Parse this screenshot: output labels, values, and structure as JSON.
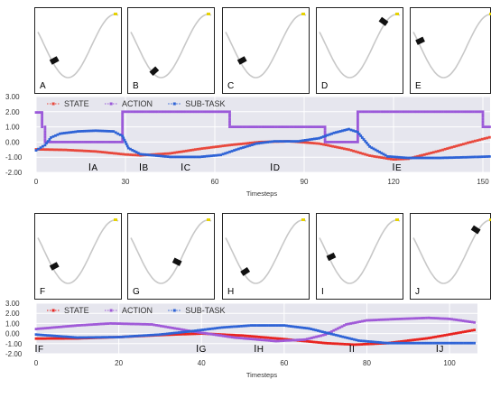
{
  "figure": {
    "top": {
      "frames": [
        "A",
        "B",
        "C",
        "D",
        "E"
      ],
      "frame_car_positions": [
        0.18,
        0.27,
        0.18,
        0.82,
        0.06
      ]
    },
    "bottom": {
      "frames": [
        "F",
        "G",
        "H",
        "I",
        "J"
      ],
      "frame_car_positions": [
        0.18,
        0.6,
        0.22,
        0.12,
        0.8
      ]
    }
  },
  "chart_data": [
    {
      "type": "line",
      "xlabel": "Timesteps",
      "ylabel": "",
      "xlim": [
        0,
        150
      ],
      "ylim": [
        -2.0,
        3.0
      ],
      "xticks": [
        0,
        30,
        60,
        90,
        120,
        150
      ],
      "xtick_labels": [
        "0",
        "30",
        "60",
        "90",
        "120",
        "150"
      ],
      "yticks": [
        -2.0,
        -1.0,
        0.0,
        1.0,
        2.0,
        3.0
      ],
      "ytick_labels": [
        "-2.00",
        "-1.00",
        "0.00",
        "1.00",
        "2.00",
        "3.00"
      ],
      "legend": [
        "STATE",
        "ACTION",
        "SUB-TASK"
      ],
      "legend_position": "top",
      "grid": true,
      "markers": [
        {
          "label": "A",
          "x": 18
        },
        {
          "label": "B",
          "x": 35
        },
        {
          "label": "C",
          "x": 49
        },
        {
          "label": "D",
          "x": 79
        },
        {
          "label": "E",
          "x": 120
        }
      ],
      "series": [
        {
          "name": "STATE",
          "color": "#e8483c",
          "x_max": 153,
          "points": [
            [
              0,
              -0.48
            ],
            [
              10,
              -0.52
            ],
            [
              20,
              -0.62
            ],
            [
              30,
              -0.82
            ],
            [
              35,
              -0.88
            ],
            [
              45,
              -0.75
            ],
            [
              55,
              -0.45
            ],
            [
              65,
              -0.2
            ],
            [
              75,
              0.0
            ],
            [
              85,
              0.05
            ],
            [
              95,
              -0.1
            ],
            [
              105,
              -0.5
            ],
            [
              112,
              -0.9
            ],
            [
              120,
              -1.15
            ],
            [
              125,
              -1.1
            ],
            [
              135,
              -0.6
            ],
            [
              145,
              -0.05
            ],
            [
              153,
              0.35
            ]
          ]
        },
        {
          "name": "ACTION",
          "color": "#9b59d9",
          "x_max": 153,
          "points": [
            [
              0,
              1.95
            ],
            [
              2,
              1.95
            ],
            [
              2,
              1.0
            ],
            [
              3,
              1.0
            ],
            [
              3,
              0.0
            ],
            [
              29,
              0.0
            ],
            [
              29,
              2.0
            ],
            [
              65,
              2.0
            ],
            [
              65,
              1.0
            ],
            [
              97,
              1.0
            ],
            [
              97,
              0.0
            ],
            [
              108,
              0.0
            ],
            [
              108,
              2.0
            ],
            [
              150,
              2.0
            ],
            [
              150,
              1.0
            ],
            [
              153,
              1.0
            ]
          ]
        },
        {
          "name": "SUB-TASK",
          "color": "#2e63d6",
          "x_max": 153,
          "points": [
            [
              0,
              -0.55
            ],
            [
              3,
              -0.2
            ],
            [
              5,
              0.3
            ],
            [
              8,
              0.55
            ],
            [
              14,
              0.7
            ],
            [
              20,
              0.75
            ],
            [
              26,
              0.7
            ],
            [
              29,
              0.4
            ],
            [
              31,
              -0.4
            ],
            [
              35,
              -0.8
            ],
            [
              45,
              -0.98
            ],
            [
              55,
              -0.98
            ],
            [
              62,
              -0.85
            ],
            [
              68,
              -0.45
            ],
            [
              74,
              -0.1
            ],
            [
              80,
              0.05
            ],
            [
              88,
              0.05
            ],
            [
              95,
              0.25
            ],
            [
              100,
              0.6
            ],
            [
              105,
              0.85
            ],
            [
              108,
              0.65
            ],
            [
              112,
              -0.3
            ],
            [
              118,
              -0.95
            ],
            [
              125,
              -1.05
            ],
            [
              135,
              -1.05
            ],
            [
              145,
              -1.0
            ],
            [
              153,
              -0.95
            ]
          ]
        }
      ]
    },
    {
      "type": "line",
      "xlabel": "Timesteps",
      "ylabel": "",
      "xlim": [
        0,
        105
      ],
      "ylim": [
        -2.0,
        3.0
      ],
      "xticks": [
        0,
        20,
        40,
        60,
        80,
        100
      ],
      "xtick_labels": [
        "0",
        "20",
        "40",
        "60",
        "80",
        "100"
      ],
      "yticks": [
        -2.0,
        -1.0,
        0.0,
        1.0,
        2.0,
        3.0
      ],
      "ytick_labels": [
        "-2.00",
        "-1.00",
        "0.00",
        "1.00",
        "2.00",
        "3.00"
      ],
      "legend": [
        "STATE",
        "ACTION",
        "SUB-TASK"
      ],
      "legend_position": "top",
      "grid": true,
      "markers": [
        {
          "label": "F",
          "x": 0
        },
        {
          "label": "G",
          "x": 39
        },
        {
          "label": "H",
          "x": 53
        },
        {
          "label": "I",
          "x": 76
        },
        {
          "label": "J",
          "x": 97
        }
      ],
      "series": [
        {
          "name": "STATE",
          "color": "#e8231f",
          "x_max": 106,
          "points": [
            [
              0,
              -0.5
            ],
            [
              10,
              -0.48
            ],
            [
              20,
              -0.35
            ],
            [
              30,
              -0.15
            ],
            [
              40,
              0.0
            ],
            [
              50,
              -0.2
            ],
            [
              60,
              -0.55
            ],
            [
              70,
              -0.95
            ],
            [
              77,
              -1.1
            ],
            [
              85,
              -0.95
            ],
            [
              95,
              -0.45
            ],
            [
              106,
              0.35
            ]
          ]
        },
        {
          "name": "ACTION",
          "color": "#a05ad8",
          "x_max": 106,
          "points": [
            [
              0,
              0.45
            ],
            [
              10,
              0.8
            ],
            [
              18,
              1.0
            ],
            [
              28,
              0.9
            ],
            [
              38,
              0.2
            ],
            [
              48,
              -0.4
            ],
            [
              58,
              -0.75
            ],
            [
              65,
              -0.6
            ],
            [
              70,
              -0.1
            ],
            [
              75,
              0.9
            ],
            [
              80,
              1.3
            ],
            [
              88,
              1.45
            ],
            [
              95,
              1.55
            ],
            [
              100,
              1.45
            ],
            [
              106,
              1.1
            ]
          ]
        },
        {
          "name": "SUB-TASK",
          "color": "#2e63d6",
          "x_max": 106,
          "points": [
            [
              0,
              -0.1
            ],
            [
              10,
              -0.4
            ],
            [
              20,
              -0.35
            ],
            [
              30,
              -0.1
            ],
            [
              38,
              0.25
            ],
            [
              45,
              0.6
            ],
            [
              52,
              0.8
            ],
            [
              60,
              0.8
            ],
            [
              66,
              0.5
            ],
            [
              72,
              -0.1
            ],
            [
              78,
              -0.7
            ],
            [
              85,
              -0.95
            ],
            [
              95,
              -0.95
            ],
            [
              106,
              -0.95
            ]
          ]
        }
      ]
    }
  ]
}
